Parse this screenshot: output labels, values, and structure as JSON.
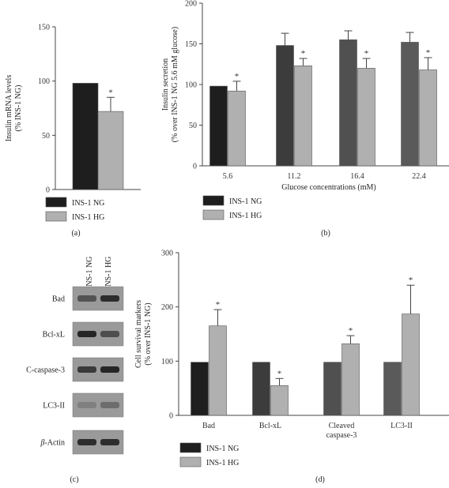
{
  "chart_data": [
    {
      "panel": "(a)",
      "type": "bar",
      "categories": [
        "INS-1 NG",
        "INS-1 HG"
      ],
      "values": [
        98,
        72
      ],
      "errors": [
        0,
        13
      ],
      "significance": [
        "",
        "*"
      ],
      "bar_colors": [
        "#1e1e1e",
        "#b0b0b0"
      ],
      "ylabel": [
        "Insulin mRNA levels",
        "(% INS-1 NG)"
      ],
      "ylim": [
        0,
        150
      ],
      "yticks": [
        0,
        50,
        100,
        150
      ],
      "legend": [
        "INS-1 NG",
        "INS-1 HG"
      ]
    },
    {
      "panel": "(b)",
      "type": "bar",
      "categories": [
        "5.6",
        "11.2",
        "16.4",
        "22.4"
      ],
      "series": [
        {
          "name": "INS-1 NG",
          "values": [
            98,
            148,
            155,
            152
          ],
          "errors": [
            0,
            15,
            11,
            12
          ],
          "colors": [
            "#1e1e1e",
            "#3c3c3c",
            "#505050",
            "#5a5a5a"
          ]
        },
        {
          "name": "INS-1 HG",
          "values": [
            92,
            123,
            120,
            118
          ],
          "errors": [
            12,
            9,
            12,
            15
          ],
          "colors": [
            "#b0b0b0",
            "#b0b0b0",
            "#b0b0b0",
            "#b0b0b0"
          ]
        }
      ],
      "significance": [
        "*",
        "*",
        "*",
        "*"
      ],
      "xlabel": "Glucose concentrations (mM)",
      "ylabel": [
        "Insulin secretion",
        "(% over INS-1 NG 5.6 mM glucose)"
      ],
      "ylim": [
        0,
        200
      ],
      "yticks": [
        0,
        50,
        100,
        150,
        200
      ],
      "legend": [
        "INS-1 NG",
        "INS-1 HG"
      ]
    },
    {
      "panel": "(d)",
      "type": "bar",
      "categories": [
        "Bad",
        "Bcl-xL",
        "Cleaved caspase-3",
        "LC3-II"
      ],
      "category_lines": [
        [
          "Bad"
        ],
        [
          "Bcl-xL"
        ],
        [
          "Cleaved",
          "caspase-3"
        ],
        [
          "LC3-II"
        ]
      ],
      "series": [
        {
          "name": "INS-1 NG",
          "values": [
            98,
            98,
            98,
            98
          ],
          "errors": [
            0,
            0,
            0,
            0
          ],
          "colors": [
            "#1e1e1e",
            "#3c3c3c",
            "#505050",
            "#5a5a5a"
          ]
        },
        {
          "name": "INS-1 HG",
          "values": [
            165,
            55,
            132,
            187
          ],
          "errors": [
            30,
            13,
            15,
            53
          ],
          "colors": [
            "#b0b0b0",
            "#b0b0b0",
            "#b0b0b0",
            "#b0b0b0"
          ]
        }
      ],
      "significance": [
        "*",
        "*",
        "*",
        "*"
      ],
      "ylabel": [
        "Cell survival markers",
        "(% over INS-1 NG)"
      ],
      "ylim": [
        0,
        300
      ],
      "yticks": [
        0,
        100,
        200,
        300
      ],
      "legend": [
        "INS-1 NG",
        "INS-1 HG"
      ]
    }
  ],
  "blot": {
    "panel": "(c)",
    "columns": [
      "INS-1 NG",
      "INS-1 HG"
    ],
    "rows": [
      {
        "label": "Bad",
        "intensity": [
          0.55,
          0.85
        ]
      },
      {
        "label": "Bcl-xL",
        "intensity": [
          0.9,
          0.6
        ]
      },
      {
        "label": "C-caspase-3",
        "intensity": [
          0.75,
          0.9
        ]
      },
      {
        "label": "LC3-II",
        "intensity": [
          0.2,
          0.35
        ]
      },
      {
        "label": "β-Actin",
        "intensity": [
          0.85,
          0.85
        ]
      }
    ],
    "lane_color": "#9a9a9a",
    "band_color": "#1a1a1a"
  }
}
